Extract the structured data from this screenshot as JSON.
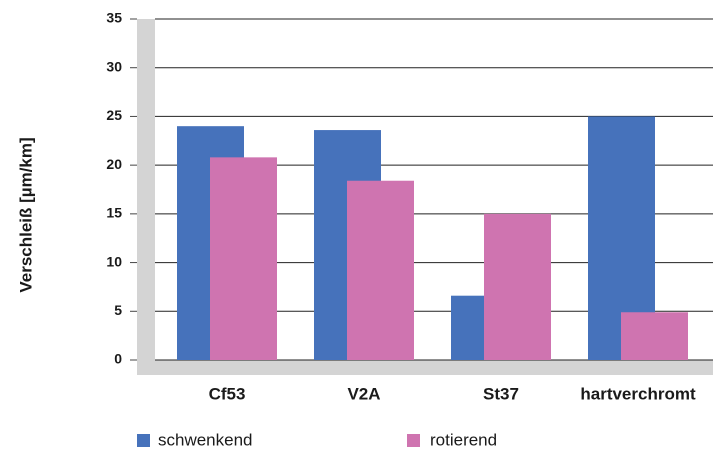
{
  "chart_data": {
    "type": "bar",
    "y_label": "Verschleiß [µm/km]",
    "categories": [
      "Cf53",
      "V2A",
      "St37",
      "hartverchromt"
    ],
    "series": [
      {
        "name": "schwenkend",
        "color": "#4672bb",
        "values": [
          24,
          23.6,
          6.6,
          25
        ]
      },
      {
        "name": "rotierend",
        "color": "#cf74b0",
        "values": [
          20.8,
          18.4,
          15,
          4.9
        ]
      }
    ],
    "ylim": [
      0,
      35
    ],
    "yticks": [
      0,
      5,
      10,
      15,
      20,
      25,
      30,
      35
    ],
    "grid": true
  }
}
